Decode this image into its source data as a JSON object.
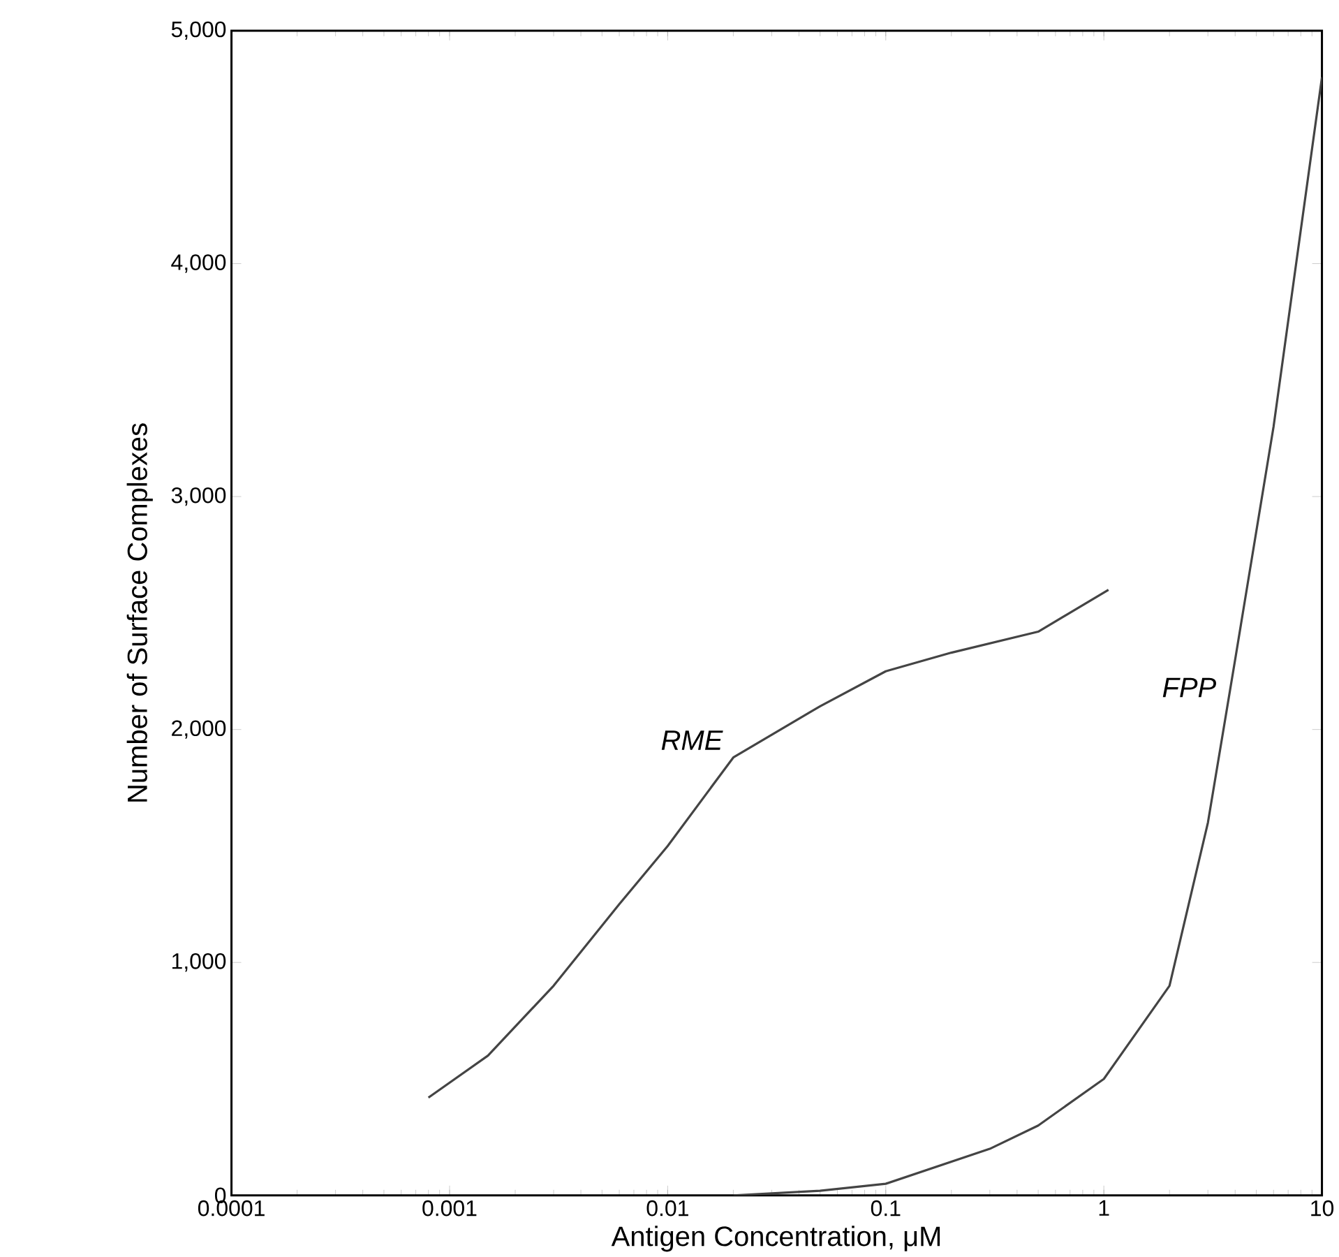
{
  "chart_data": {
    "type": "line",
    "xlabel": "Antigen Concentration, μM",
    "ylabel": "Number of Surface Complexes",
    "log": "x",
    "grid": false,
    "legend": false,
    "line_style": "solid",
    "marker": "none",
    "xlim": [
      0.0001,
      10
    ],
    "xticks": [
      0.0001,
      0.001,
      0.01,
      0.1,
      1,
      10
    ],
    "ylim": [
      0,
      5000
    ],
    "yticks": [
      0,
      {
        "value": 1000,
        "label": "1,000"
      },
      {
        "value": 2000,
        "label": "2,000"
      },
      {
        "value": 3000,
        "label": "3,000"
      },
      {
        "value": 4000,
        "label": "4,000"
      },
      {
        "value": 5000,
        "label": "5,000"
      }
    ],
    "series": [
      {
        "name": "RME",
        "color": "#444444",
        "x": [
          0.0008,
          0.0015,
          0.003,
          0.006,
          0.01,
          0.02,
          0.05,
          0.1,
          0.2,
          0.5,
          1.05
        ],
        "values": [
          420,
          600,
          900,
          1250,
          1500,
          1880,
          2100,
          2250,
          2330,
          2420,
          2600
        ]
      },
      {
        "name": "FPP",
        "color": "#444444",
        "x": [
          0.02,
          0.05,
          0.1,
          0.3,
          0.5,
          1,
          2,
          3,
          4,
          6,
          10
        ],
        "values": [
          0,
          20,
          50,
          200,
          300,
          500,
          900,
          1600,
          2300,
          3300,
          4800
        ]
      }
    ]
  }
}
